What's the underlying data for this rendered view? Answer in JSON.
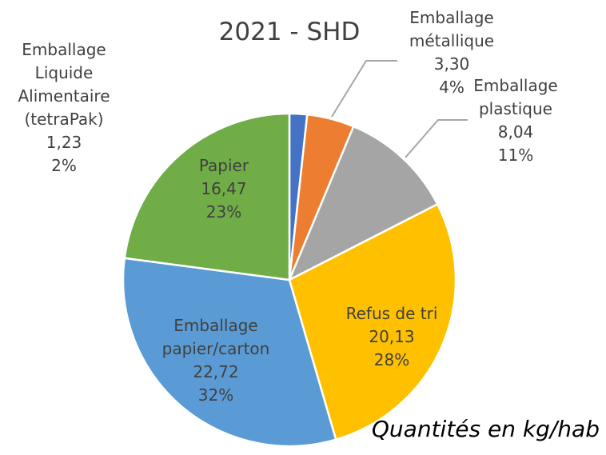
{
  "chart_data": {
    "type": "pie",
    "title": "2021 - SHD",
    "note": "Quantités en kg/hab",
    "categories": [
      "Emballage Liquide Alimentaire (tetraPak)",
      "Emballage métallique",
      "Emballage plastique",
      "Refus de tri",
      "Emballage papier/carton",
      "Papier"
    ],
    "values": [
      1.23,
      3.3,
      8.04,
      20.13,
      22.72,
      16.47
    ],
    "value_labels": [
      "1,23",
      "3,30",
      "8,04",
      "20,13",
      "22,72",
      "16,47"
    ],
    "percent_labels": [
      "2%",
      "4%",
      "11%",
      "28%",
      "32%",
      "23%"
    ],
    "colors": [
      "#4472c4",
      "#ed7d31",
      "#a5a5a5",
      "#ffc000",
      "#5b9bd5",
      "#70ad47"
    ]
  }
}
